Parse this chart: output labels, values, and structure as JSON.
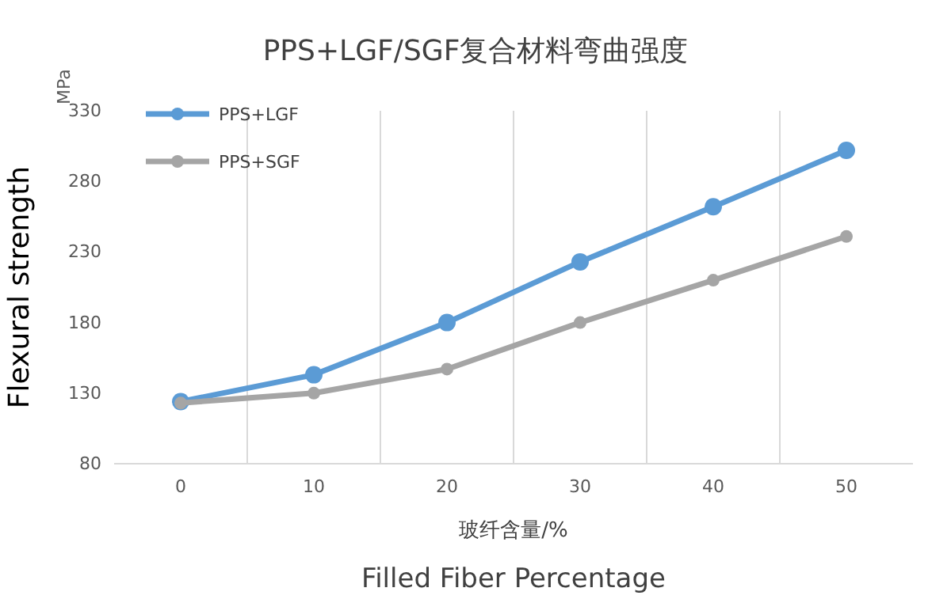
{
  "chart_data": {
    "type": "line",
    "title": "PPS+LGF/SGF复合材料弯曲强度",
    "xlabel": "玻纤含量/%",
    "ylabel": "Flexural strength",
    "annotations": [
      "MPa",
      "Filled Fiber Percentage"
    ],
    "categories": [
      "0",
      "10",
      "20",
      "30",
      "40",
      "50"
    ],
    "series": [
      {
        "name": "PPS+LGF",
        "color": "#5b9bd5",
        "values": [
          124,
          143,
          180,
          223,
          262,
          302
        ]
      },
      {
        "name": "PPS+SGF",
        "color": "#a5a5a5",
        "values": [
          123,
          130,
          147,
          180,
          210,
          241
        ]
      }
    ],
    "ylim": [
      80,
      330
    ],
    "yticks": [
      80,
      130,
      180,
      230,
      280,
      330
    ],
    "grid": "x",
    "legend": "top left",
    "marker": "circle",
    "line_style": "solid"
  }
}
